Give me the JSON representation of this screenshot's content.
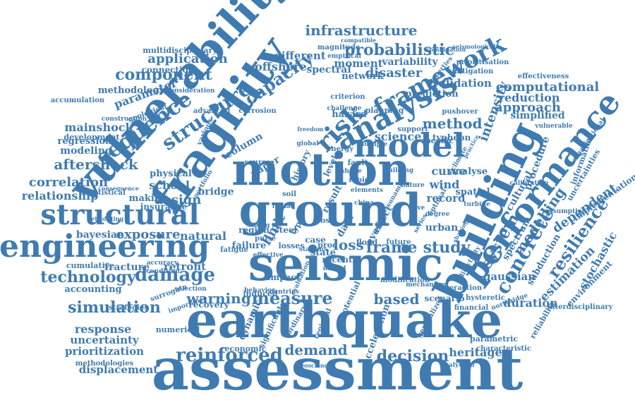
{
  "colors": {
    "word": "#3f7bb0",
    "background": "#ffffff"
  },
  "words": [
    "assessment",
    "earthquake",
    "seismic",
    "ground",
    "motion",
    "fragility",
    "vulnerability",
    "building",
    "performance",
    "model",
    "analysis",
    "risk",
    "engineering",
    "structural",
    "framework",
    "probabilistic",
    "infrastructure",
    "reinforced",
    "decision",
    "demand",
    "measure",
    "damage",
    "technology",
    "simulation",
    "sequence",
    "structure",
    "capacity",
    "component",
    "application",
    "aftershock",
    "mainshock",
    "correlation",
    "relationship",
    "modeling",
    "regression",
    "parameter",
    "methodology",
    "connection",
    "school",
    "design",
    "making",
    "exposure",
    "natural",
    "bayesian",
    "warning",
    "response",
    "uncertainty",
    "prioritization",
    "displacement",
    "heritage",
    "frame",
    "study",
    "loss",
    "based",
    "concrete",
    "system",
    "resilience",
    "modelling",
    "dependent",
    "method",
    "intensity",
    "approach",
    "computational",
    "reduction",
    "validation",
    "prediction",
    "disaster",
    "moment",
    "variability",
    "network",
    "offshore",
    "different",
    "science",
    "typhoon",
    "curve",
    "wind",
    "record",
    "spatial",
    "estimation",
    "stochastic",
    "gaussian",
    "duration",
    "scenario",
    "urban",
    "procedure",
    "simplified",
    "retrofit",
    "fracture",
    "accounting",
    "recovery",
    "cumulative",
    "physical",
    "insurance",
    "bridge",
    "development",
    "spectral",
    "hazard",
    "column",
    "paper",
    "event",
    "state",
    "flood",
    "steel",
    "region",
    "impact",
    "financial",
    "economic",
    "generalized",
    "numerical",
    "strategies",
    "methodologies",
    "acceleration",
    "cultural",
    "spectrum",
    "subduction",
    "analyse",
    "implementation",
    "environment",
    "interdisciplinary",
    "reliability",
    "characteristic",
    "parametric",
    "multidisciplinary",
    "effectiveness",
    "information",
    "uncertainties",
    "mitigation",
    "prioritisation",
    "pushover",
    "specific",
    "support",
    "planning",
    "magnitude",
    "empirical",
    "compatible",
    "properties",
    "accumulation",
    "consideration",
    "geological",
    "advanced",
    "various",
    "corrosion",
    "construction",
    "statistical",
    "retrofitting",
    "consequence",
    "portfolio",
    "source",
    "energy",
    "history",
    "level",
    "fault",
    "case",
    "recent",
    "future",
    "failure",
    "fatigue",
    "selection",
    "surrogate",
    "induced",
    "dynamic",
    "significant",
    "regional",
    "geoscience",
    "analytical",
    "hysteretic",
    "interaction",
    "northridge",
    "calibration",
    "assumption",
    "vulnerable",
    "organizational",
    "directivity",
    "neural",
    "climate",
    "criterion",
    "multiple",
    "potential",
    "modification",
    "accuracy",
    "condition",
    "importance",
    "behavior",
    "evaluation",
    "effective",
    "global",
    "challenge",
    "freedom",
    "seismological",
    "shaking",
    "elements",
    "pulse",
    "stations",
    "italian",
    "china",
    "tsunami",
    "wave",
    "series",
    "degree",
    "optimal",
    "turbine",
    "combination",
    "practice",
    "countries",
    "ordinary",
    "rapid",
    "losses",
    "proc",
    "type",
    "result",
    "cost",
    "data",
    "limit",
    "effect",
    "mechanism",
    "strong",
    "shape",
    "soil",
    "building",
    "nature"
  ]
}
